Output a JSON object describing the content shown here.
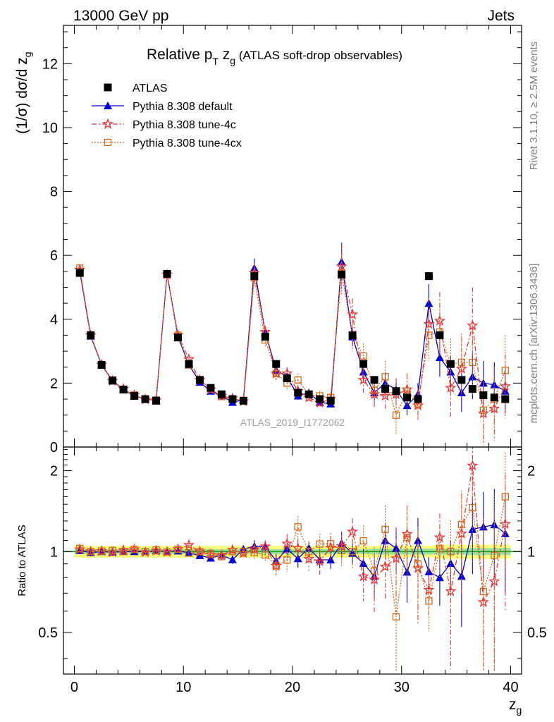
{
  "header": {
    "left": "13000 GeV pp",
    "right": "Jets"
  },
  "side_labels": {
    "rivet": "Rivet 3.1.10, ≥ 2.5M events",
    "mcplots": "mcplots.cern.ch [arXiv:1306.3436]"
  },
  "watermark": "ATLAS_2019_I1772062",
  "chart_data": {
    "type": "scatter",
    "title": {
      "main": "Relative p",
      "main_sub": "T",
      "var": " z",
      "var_sub": "g",
      "suffix": " (ATLAS soft-drop observables)"
    },
    "ylabel_main": {
      "text": "(1/σ) dσ/d z",
      "sub": "g"
    },
    "ylabel_ratio": "Ratio to ATLAS",
    "xlabel": {
      "text": "z",
      "sub": "g"
    },
    "xlim": [
      -1,
      41
    ],
    "ylim_main": [
      0,
      13.2
    ],
    "ylim_ratio": [
      0.35,
      2.45
    ],
    "x_ticks": [
      0,
      10,
      20,
      30,
      40
    ],
    "main_y_ticks": [
      0,
      2,
      4,
      6,
      8,
      10,
      12
    ],
    "ratio_y_ticks": [
      0.5,
      1,
      2
    ],
    "x": [
      0.5,
      1.5,
      2.5,
      3.5,
      4.5,
      5.5,
      6.5,
      7.5,
      8.5,
      9.5,
      10.5,
      11.5,
      12.5,
      13.5,
      14.5,
      15.5,
      16.5,
      17.5,
      18.5,
      19.5,
      20.5,
      21.5,
      22.5,
      23.5,
      24.5,
      25.5,
      26.5,
      27.5,
      28.5,
      29.5,
      30.5,
      31.5,
      32.5,
      33.5,
      34.5,
      35.5,
      36.5,
      37.5,
      38.5,
      39.5
    ],
    "band": {
      "inner_half": [
        0.02,
        0.02,
        0.02,
        0.02,
        0.02,
        0.02,
        0.02,
        0.02,
        0.02,
        0.02,
        0.02,
        0.02,
        0.02,
        0.02,
        0.02,
        0.02,
        0.02,
        0.02,
        0.02,
        0.02,
        0.02,
        0.02,
        0.02,
        0.02,
        0.02,
        0.02,
        0.02,
        0.025,
        0.025,
        0.025,
        0.025,
        0.025,
        0.025,
        0.025,
        0.025,
        0.025,
        0.03,
        0.03,
        0.03,
        0.03
      ],
      "outer_half": [
        0.05,
        0.05,
        0.05,
        0.05,
        0.05,
        0.05,
        0.05,
        0.05,
        0.05,
        0.05,
        0.05,
        0.05,
        0.05,
        0.05,
        0.05,
        0.05,
        0.05,
        0.05,
        0.05,
        0.05,
        0.05,
        0.05,
        0.05,
        0.05,
        0.05,
        0.05,
        0.05,
        0.05,
        0.05,
        0.05,
        0.05,
        0.05,
        0.05,
        0.06,
        0.06,
        0.06,
        0.06,
        0.06,
        0.06,
        0.06
      ]
    },
    "series": [
      {
        "name": "ATLAS",
        "style": "data",
        "color": "#000000",
        "values": [
          5.45,
          3.5,
          2.57,
          2.08,
          1.8,
          1.6,
          1.5,
          1.45,
          5.42,
          3.43,
          2.6,
          2.1,
          1.85,
          1.65,
          1.5,
          1.45,
          5.35,
          3.45,
          2.6,
          2.15,
          1.7,
          1.65,
          1.5,
          1.45,
          5.4,
          3.5,
          2.6,
          2.1,
          1.82,
          1.75,
          1.55,
          1.5,
          5.35,
          3.5,
          2.6,
          2.1,
          1.82,
          1.62,
          1.55,
          1.5
        ]
      },
      {
        "name": "Pythia 8.308 default",
        "style": "solid",
        "marker": "triangle",
        "color": "#0000cc",
        "values": [
          5.5,
          3.47,
          2.57,
          2.07,
          1.8,
          1.6,
          1.5,
          1.46,
          5.43,
          3.45,
          2.57,
          2.03,
          1.75,
          1.6,
          1.4,
          1.48,
          5.6,
          3.6,
          2.4,
          2.2,
          1.6,
          1.7,
          1.4,
          1.35,
          5.8,
          3.45,
          2.35,
          1.7,
          2,
          1.8,
          1.3,
          1.65,
          4.5,
          2.8,
          2.35,
          1.7,
          2.2,
          2.0,
          1.95,
          1.75
        ],
        "err": [
          0.05,
          0.04,
          0.03,
          0.03,
          0.03,
          0.03,
          0.03,
          0.03,
          0.06,
          0.05,
          0.05,
          0.05,
          0.05,
          0.05,
          0.05,
          0.05,
          0.3,
          0.15,
          0.15,
          0.12,
          0.12,
          0.1,
          0.1,
          0.1,
          0.6,
          0.3,
          0.3,
          0.3,
          0.3,
          0.35,
          0.3,
          0.35,
          0.6,
          0.6,
          0.5,
          0.6,
          0.7,
          0.7,
          0.7,
          0.7
        ]
      },
      {
        "name": "Pythia 8.308 tune-4c",
        "style": "dashdot",
        "marker": "star",
        "color": "#e8383d",
        "values": [
          5.55,
          3.5,
          2.58,
          2.07,
          1.82,
          1.63,
          1.49,
          1.46,
          5.4,
          3.5,
          2.75,
          2.1,
          1.8,
          1.6,
          1.52,
          1.43,
          5.45,
          3.6,
          2.3,
          2.3,
          1.75,
          1.55,
          1.38,
          1.5,
          5.65,
          4.15,
          2.1,
          1.65,
          1.6,
          1.65,
          1.8,
          1.3,
          3.85,
          3.95,
          1.85,
          2.45,
          3.8,
          1.05,
          1.2,
          1.9
        ],
        "err": [
          0.05,
          0.04,
          0.03,
          0.03,
          0.03,
          0.03,
          0.03,
          0.03,
          0.06,
          0.05,
          0.05,
          0.05,
          0.05,
          0.05,
          0.05,
          0.05,
          0.3,
          0.2,
          0.2,
          0.2,
          0.15,
          0.15,
          0.15,
          0.15,
          0.7,
          0.5,
          0.4,
          0.4,
          0.4,
          0.5,
          0.5,
          0.5,
          0.8,
          0.9,
          0.9,
          1.0,
          1.2,
          1.0,
          1.0,
          1.0
        ]
      },
      {
        "name": "Pythia 8.308 tune-4cx",
        "style": "dotted",
        "marker": "square",
        "color": "#d2691e",
        "values": [
          5.6,
          3.5,
          2.58,
          2.1,
          1.8,
          1.63,
          1.5,
          1.47,
          5.4,
          3.5,
          2.57,
          2.1,
          1.82,
          1.58,
          1.5,
          1.45,
          5.3,
          3.35,
          2.3,
          2.0,
          2.1,
          1.65,
          1.6,
          1.55,
          5.45,
          3.5,
          2.85,
          1.78,
          2.2,
          1.0,
          1.75,
          1.35,
          3.5,
          3.6,
          2.6,
          2.65,
          2.65,
          1.15,
          1.5,
          2.4
        ],
        "err": [
          0.05,
          0.04,
          0.03,
          0.03,
          0.03,
          0.03,
          0.03,
          0.03,
          0.06,
          0.05,
          0.05,
          0.05,
          0.05,
          0.05,
          0.05,
          0.05,
          0.3,
          0.2,
          0.2,
          0.2,
          0.2,
          0.15,
          0.15,
          0.15,
          0.7,
          0.5,
          0.4,
          0.4,
          0.5,
          0.6,
          0.5,
          0.5,
          0.8,
          0.8,
          0.8,
          0.9,
          1.0,
          1.0,
          1.0,
          1.1
        ]
      }
    ]
  }
}
